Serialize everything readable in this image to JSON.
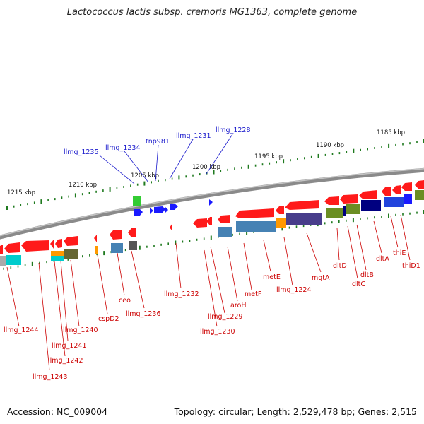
{
  "header": {
    "title": "Lactococcus lactis subsp. cremoris MG1363, complete genome"
  },
  "footer": {
    "accession": "Accession: NC_009004",
    "topology": "Topology: circular; Length: 2,529,478 bp; Genes: 2,515"
  },
  "ruler": {
    "ticks": [
      {
        "label": "1215 kbp",
        "kbp": 1215
      },
      {
        "label": "1210 kbp",
        "kbp": 1210
      },
      {
        "label": "1205 kbp",
        "kbp": 1205
      },
      {
        "label": "1200 kbp",
        "kbp": 1200
      },
      {
        "label": "1195 kbp",
        "kbp": 1195
      },
      {
        "label": "1190 kbp",
        "kbp": 1190
      },
      {
        "label": "1185 kbp",
        "kbp": 1185
      }
    ]
  },
  "forward_labels": [
    "llmg_1235",
    "llmg_1234",
    "tnp981",
    "llmg_1231",
    "llmg_1228"
  ],
  "reverse_labels": [
    "llmg_1244",
    "llmg_1243",
    "llmg_1242",
    "llmg_1241",
    "llmg_1240",
    "cspD2",
    "ceo",
    "llmg_1236",
    "llmg_1232",
    "llmg_1230",
    "llmg_1229",
    "aroH",
    "metF",
    "metE",
    "llmg_1224",
    "mgtA",
    "dltD",
    "dltC",
    "dltB",
    "dltA",
    "thiE",
    "thiD1"
  ],
  "colors": {
    "forward_label": "#1a1acc",
    "reverse_label": "#cc0000",
    "reverse_gene": "#ff1a1a",
    "forward_gene": "#1a1aff",
    "tick": "#1f7a1f",
    "backbone": "#8a8a8a",
    "cog_colors": [
      "#00cccc",
      "#ff9900",
      "#666633",
      "#4682b4",
      "#483d8b",
      "#000080",
      "#6b8e23",
      "#33cc33",
      "#ff3399",
      "#2244dd"
    ]
  }
}
